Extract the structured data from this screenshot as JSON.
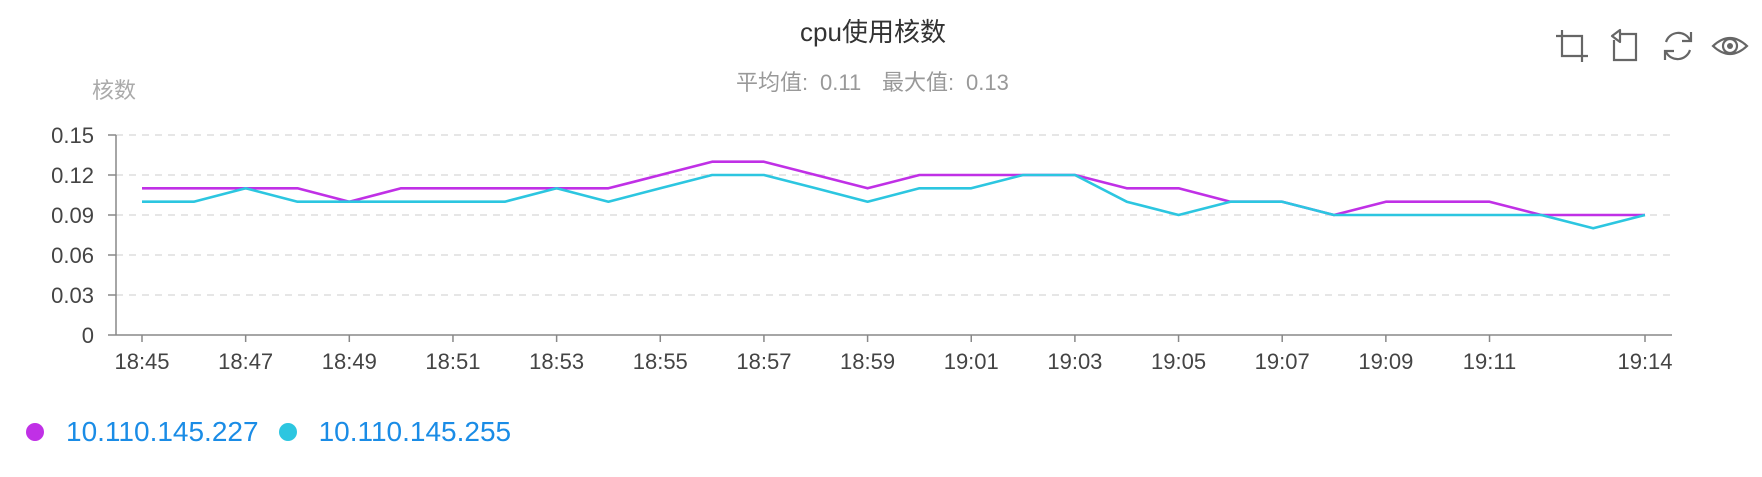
{
  "chart_data": {
    "type": "line",
    "title": "cpu使用核数",
    "subtitle": {
      "avg_label": "平均值:",
      "avg_value": "0.11",
      "max_label": "最大值:",
      "max_value": "0.13"
    },
    "ylabel": "核数",
    "ylim": [
      0,
      0.15
    ],
    "yticks": [
      "0",
      "0.03",
      "0.06",
      "0.09",
      "0.12",
      "0.15"
    ],
    "ytick_values": [
      0,
      0.03,
      0.06,
      0.09,
      0.12,
      0.15
    ],
    "grid": true,
    "legend_position": "bottom-left",
    "x": [
      "18:45",
      "18:46",
      "18:47",
      "18:48",
      "18:49",
      "18:50",
      "18:51",
      "18:52",
      "18:53",
      "18:54",
      "18:55",
      "18:56",
      "18:57",
      "18:58",
      "18:59",
      "19:00",
      "19:01",
      "19:02",
      "19:03",
      "19:04",
      "19:05",
      "19:06",
      "19:07",
      "19:08",
      "19:09",
      "19:10",
      "19:11",
      "19:12",
      "19:13",
      "19:14"
    ],
    "xtick_labels": [
      "18:45",
      "18:47",
      "18:49",
      "18:51",
      "18:53",
      "18:55",
      "18:57",
      "18:59",
      "19:01",
      "19:03",
      "19:05",
      "19:07",
      "19:09",
      "19:11",
      "19:14"
    ],
    "series": [
      {
        "name": "10.110.145.227",
        "color": "#c030e6",
        "values": [
          0.11,
          0.11,
          0.11,
          0.11,
          0.1,
          0.11,
          0.11,
          0.11,
          0.11,
          0.11,
          0.12,
          0.13,
          0.13,
          0.12,
          0.11,
          0.12,
          0.12,
          0.12,
          0.12,
          0.11,
          0.11,
          0.1,
          0.1,
          0.09,
          0.1,
          0.1,
          0.1,
          0.09,
          0.09,
          0.09
        ]
      },
      {
        "name": "10.110.145.255",
        "color": "#2cc6e0",
        "values": [
          0.1,
          0.1,
          0.11,
          0.1,
          0.1,
          0.1,
          0.1,
          0.1,
          0.11,
          0.1,
          0.11,
          0.12,
          0.12,
          0.11,
          0.1,
          0.11,
          0.11,
          0.12,
          0.12,
          0.1,
          0.09,
          0.1,
          0.1,
          0.09,
          0.09,
          0.09,
          0.09,
          0.09,
          0.08,
          0.09
        ]
      }
    ]
  },
  "toolbar": {
    "icons": [
      "zoom-icon",
      "zoom-reset-icon",
      "restore-icon",
      "view-data-icon"
    ]
  },
  "colors": {
    "axis": "#888888",
    "grid": "#dddddd",
    "text": "#444444",
    "muted": "#999999",
    "toolbar": "#666666",
    "legend_text": "#1a8ce6"
  }
}
